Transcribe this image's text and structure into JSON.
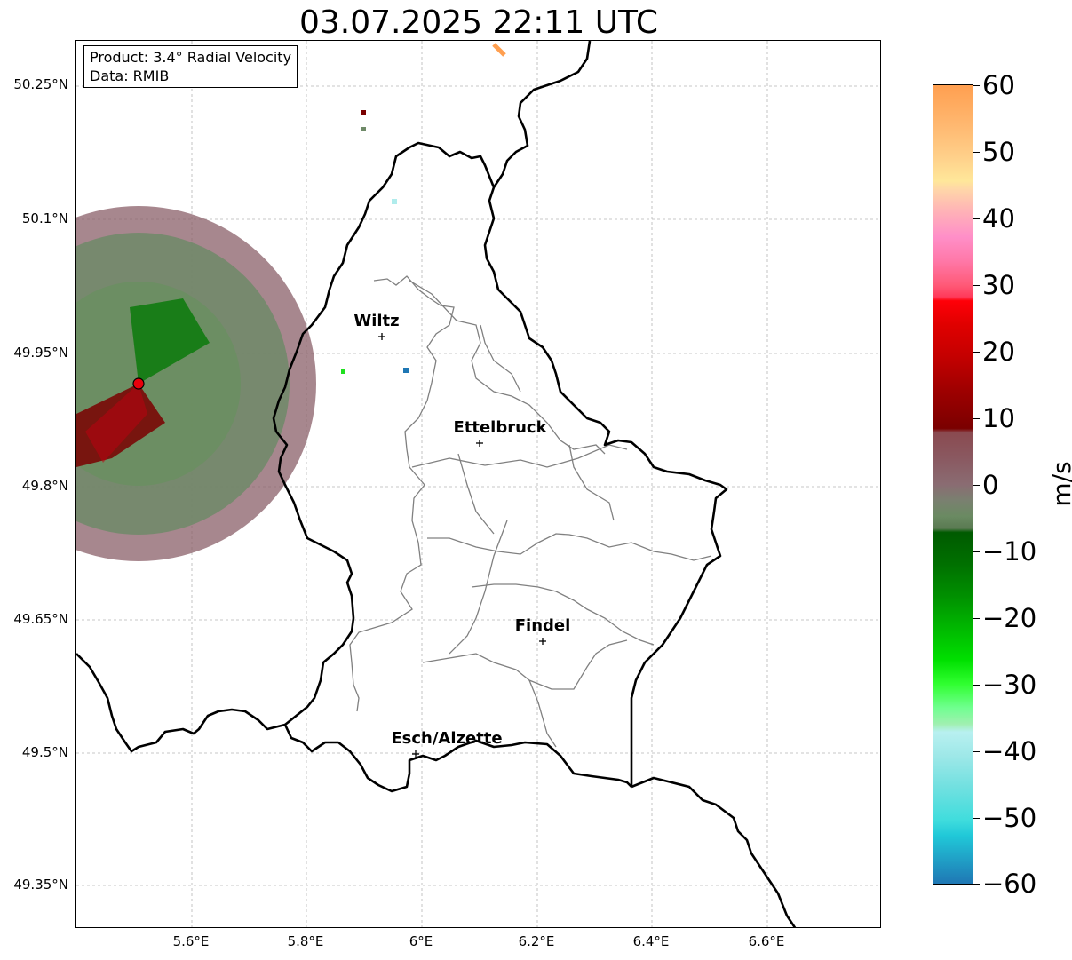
{
  "title": "03.07.2025 22:11 UTC",
  "info": {
    "product": "Product: 3.4° Radial Velocity",
    "data": "Data: RMIB"
  },
  "map": {
    "lat_ticks": [
      "50.25°N",
      "50.1°N",
      "49.95°N",
      "49.8°N",
      "49.65°N",
      "49.5°N",
      "49.35°N"
    ],
    "lon_ticks": [
      "5.6°E",
      "5.8°E",
      "6°E",
      "6.2°E",
      "6.4°E",
      "6.6°E"
    ],
    "cities": [
      {
        "name": "Wiltz"
      },
      {
        "name": "Ettelbruck"
      },
      {
        "name": "Findel"
      },
      {
        "name": "Esch/Alzette"
      }
    ],
    "radar_marker_color": "#e8000b",
    "border_color": "#000000",
    "canton_color": "#808080"
  },
  "colorbar": {
    "unit": "m/s",
    "ticks": [
      "60",
      "50",
      "40",
      "30",
      "20",
      "10",
      "0",
      "−10",
      "−20",
      "−30",
      "−40",
      "−50",
      "−60"
    ],
    "range": [
      -60,
      60
    ]
  }
}
